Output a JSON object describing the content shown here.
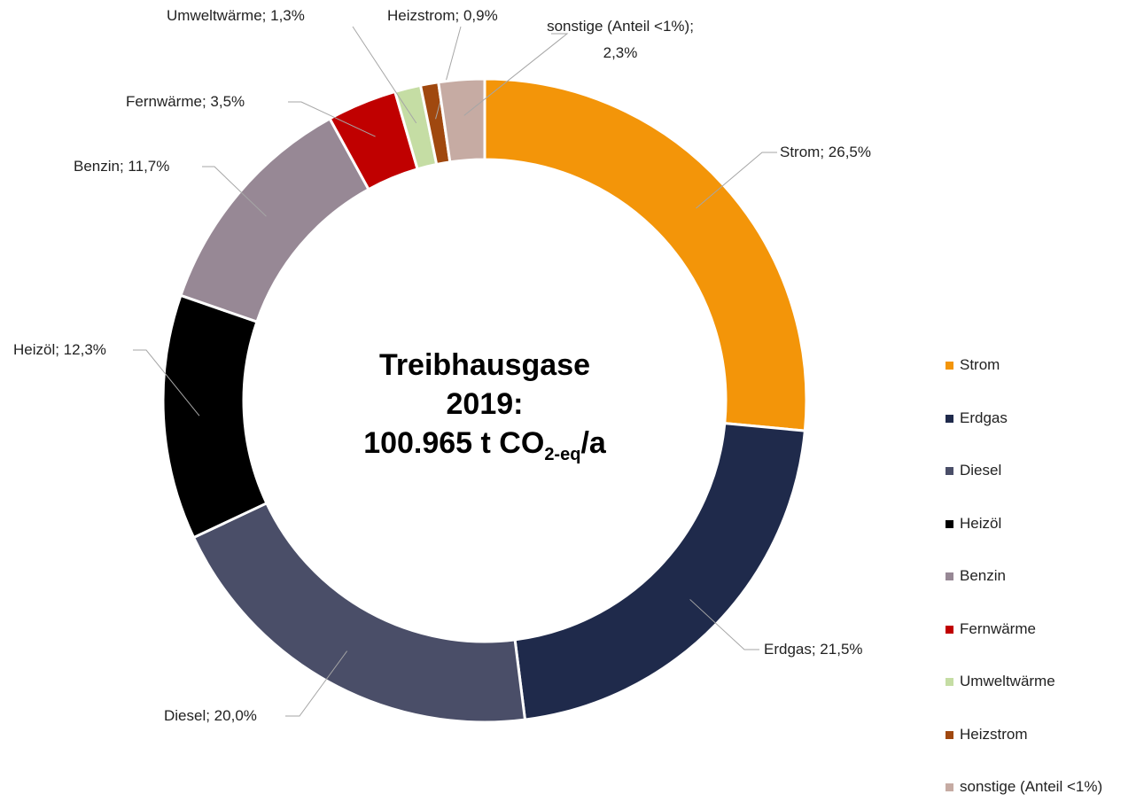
{
  "chart_data": {
    "type": "pie",
    "donut": true,
    "categories": [
      "Strom",
      "Erdgas",
      "Diesel",
      "Heizöl",
      "Benzin",
      "Fernwärme",
      "Umweltwärme",
      "Heizstrom",
      "sonstige (Anteil <1%)"
    ],
    "values": [
      26.5,
      21.5,
      20.0,
      12.3,
      11.7,
      3.5,
      1.3,
      0.9,
      2.3
    ],
    "value_labels": [
      "Strom; 26,5%",
      "Erdgas; 21,5%",
      "Diesel; 20,0%",
      "Heizöl; 12,3%",
      "Benzin; 11,7%",
      "Fernwärme; 3,5%",
      "Umweltwärme; 1,3%",
      "Heizstrom; 0,9%",
      "sonstige (Anteil <1%); 2,3%"
    ],
    "colors": [
      "#F39509",
      "#1F2A4B",
      "#4A4E68",
      "#000000",
      "#978895",
      "#C00000",
      "#C5DDA4",
      "#A0480F",
      "#C6ABA3"
    ],
    "center_text": {
      "line1": "Treibhausgase",
      "line2": "2019:",
      "main": "100.965 t CO",
      "sub": "2-eq",
      "tail": "/a"
    },
    "legend": "right"
  }
}
